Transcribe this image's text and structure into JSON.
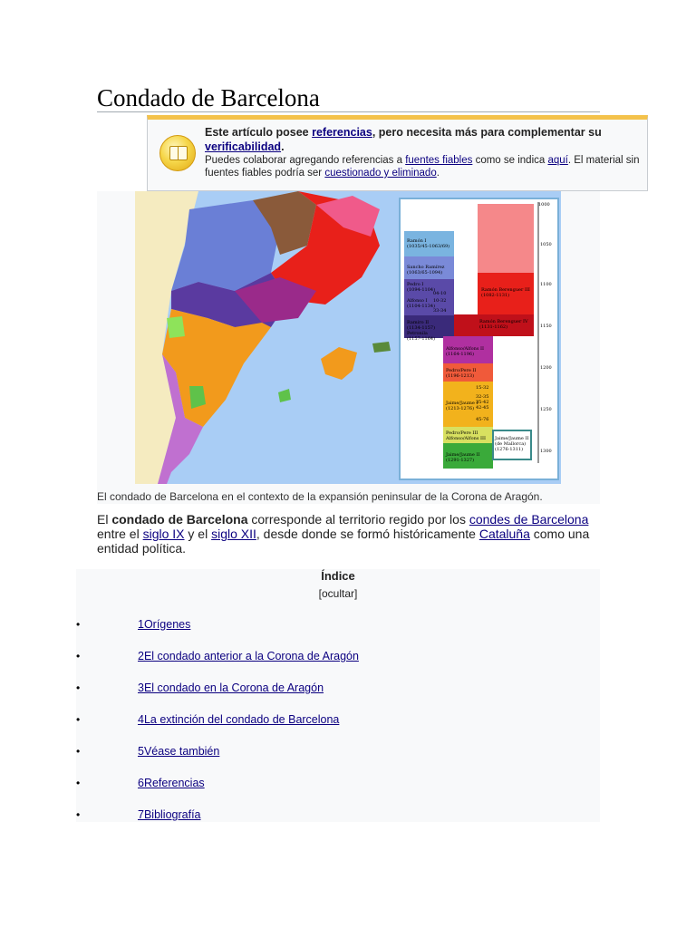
{
  "page": {
    "title": "Condado de Barcelona"
  },
  "notice": {
    "prefix": "Este artículo posee ",
    "link1": "referencias",
    "middle": ", pero necesita más para complementar su ",
    "link2": "verificabilidad",
    "suffix": ".",
    "line2_a": "Puedes colaborar agregando referencias a ",
    "line2_link1": "fuentes fiables",
    "line2_b": " como se indica ",
    "line2_link2": "aquí",
    "line2_c": ". El material sin fuentes fiables podría ser ",
    "line2_link3": "cuestionado y eliminado",
    "line2_d": "."
  },
  "figure": {
    "caption": "El condado de Barcelona en el contexto de la expansión peninsular de la Corona de Aragón.",
    "colors": {
      "sea": "#a9cdf5",
      "land": "#f5ebc0",
      "red": "#e8201a",
      "purple": "#5a3aa0",
      "orange": "#f29a1c",
      "green": "#5fc24a"
    },
    "timeline": {
      "years": [
        "1000",
        "1050",
        "1100",
        "1150",
        "1200",
        "1250",
        "1300"
      ],
      "labels": [
        "Ramón I",
        "(1035/45-1063/69)",
        "Sancho Ramírez",
        "(1063/65-1094)",
        "Pedro I",
        "(1094-1104)",
        "Alfonso I",
        "(1104-1134)",
        "Ramiro II",
        "(1134-1157)",
        "Petronila",
        "(1157-1164)",
        "Ramón Berenguer III",
        "(1082-1131)",
        "Ramón Berenguer IV",
        "(1131-1162)",
        "Alfonso/Alfons II",
        "(1164-1196)",
        "Pedro/Pere II",
        "(1196-1213)",
        "Jaime/Jaume I",
        "(1213-1276)",
        "Pedro/Pere III",
        "Alfonso/Alfons III",
        "Jaime/Jaume II",
        "(1291-1327)",
        "Jaime/Jaume II",
        "(de Mallorca)",
        "(1276-1311)",
        "04-10",
        "10-32",
        "33-34",
        "15-32",
        "32-35",
        "35-42",
        "42-45",
        "45-76"
      ]
    }
  },
  "intro": {
    "t1": "El ",
    "bold": "condado de Barcelona",
    "t2": " corresponde al territorio regido por los ",
    "link1": "condes de Barcelona",
    "t3": " entre el ",
    "link2": "siglo IX",
    "t4": " y el ",
    "link3": "siglo XII",
    "t5": ", desde donde se formó históricamente ",
    "link4": "Cataluña",
    "t6": " como una entidad política."
  },
  "toc": {
    "title": "Índice",
    "hide": "[ocultar]",
    "bullet": "•",
    "items": [
      {
        "label": "1Orígenes"
      },
      {
        "label": "2El condado anterior a la Corona de Aragón"
      },
      {
        "label": "3El condado en la Corona de Aragón"
      },
      {
        "label": "4La extinción del condado de Barcelona"
      },
      {
        "label": "5Véase también"
      },
      {
        "label": "6Referencias"
      },
      {
        "label": "7Bibliografía"
      }
    ]
  }
}
